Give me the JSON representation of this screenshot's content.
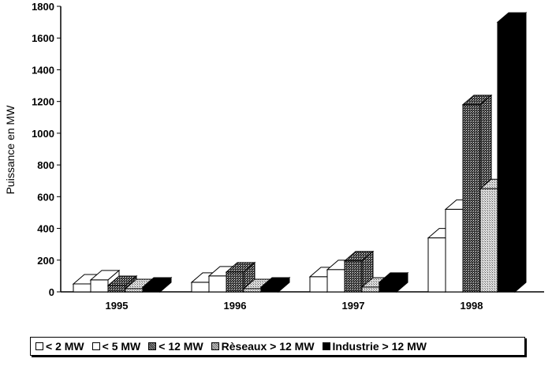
{
  "chart_data": {
    "type": "bar",
    "style": "3d-grouped",
    "title": "",
    "xlabel": "",
    "ylabel": "Puissance en MW",
    "ylim": [
      0,
      1800
    ],
    "yticks": [
      "0",
      "200",
      "400",
      "600",
      "800",
      "1000",
      "1200",
      "1400",
      "1600",
      "1800"
    ],
    "categories": [
      "1995",
      "1996",
      "1997",
      "1998"
    ],
    "series": [
      {
        "name": "< 2 MW",
        "fill": "#ffffff",
        "values": [
          50,
          60,
          95,
          340
        ]
      },
      {
        "name": "< 5 MW",
        "fill": "#ffffff",
        "values": [
          75,
          100,
          140,
          520
        ]
      },
      {
        "name": "< 12 MW",
        "fill": "#555555",
        "values": [
          40,
          125,
          195,
          1180
        ]
      },
      {
        "name": "Rèseaux > 12 MW",
        "fill": "#bbbbbb",
        "values": [
          20,
          20,
          30,
          650
        ]
      },
      {
        "name": "Industrie > 12 MW",
        "fill": "#000000",
        "values": [
          30,
          30,
          60,
          1700
        ]
      }
    ],
    "legend_position": "bottom",
    "grid": false
  }
}
